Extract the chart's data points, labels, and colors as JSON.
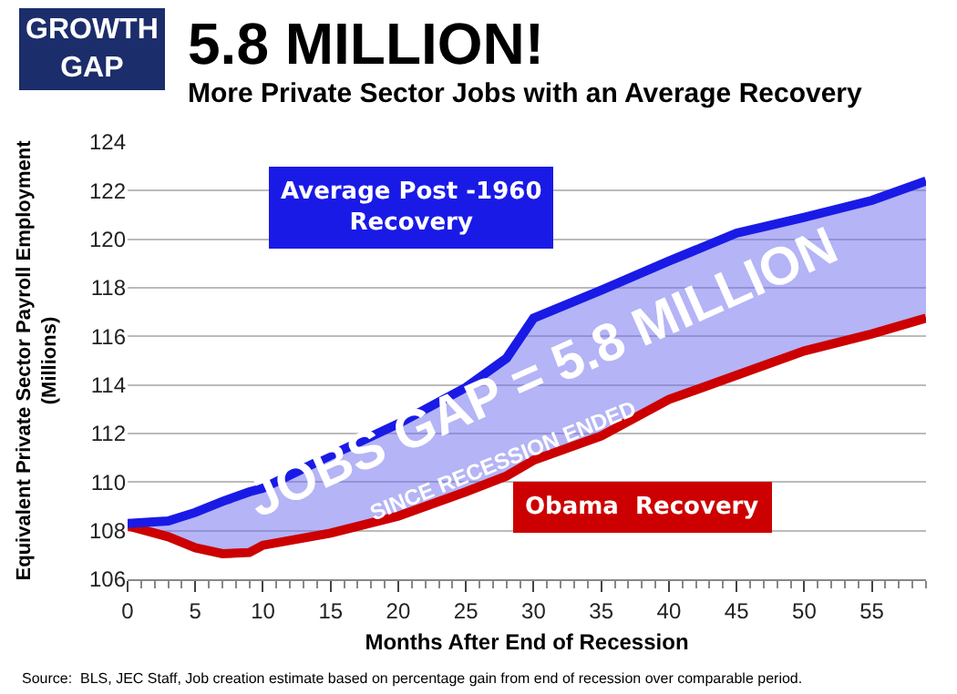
{
  "chart_data": {
    "type": "line",
    "title": "5.8 MILLION!",
    "subtitle": "More Private Sector Jobs with an Average Recovery",
    "xlabel": "Months After End of Recession",
    "ylabel": "Equivalent Private Sector Payroll Employment (Millions)",
    "x": [
      0,
      3,
      5,
      7,
      9,
      10,
      15,
      20,
      25,
      28,
      30,
      35,
      40,
      45,
      50,
      55,
      59
    ],
    "series": [
      {
        "name": "Obama  Recovery",
        "color": "#cc0000",
        "values": [
          108.2,
          107.75,
          107.3,
          107.05,
          107.1,
          107.4,
          107.9,
          108.6,
          109.6,
          110.25,
          110.9,
          111.9,
          113.4,
          114.4,
          115.4,
          116.1,
          116.75
        ]
      },
      {
        "name": "Average Post -1960 Recovery",
        "color": "#1a1ae6",
        "type": "area",
        "values": [
          108.3,
          108.4,
          108.75,
          109.2,
          109.6,
          109.75,
          111.1,
          112.4,
          113.9,
          115.1,
          116.75,
          117.9,
          119.1,
          120.25,
          120.9,
          121.6,
          122.4
        ]
      }
    ],
    "xlim": [
      0,
      59
    ],
    "xticks": [
      0,
      5,
      10,
      15,
      20,
      25,
      30,
      35,
      40,
      45,
      50,
      55
    ],
    "ylim": [
      106,
      124
    ],
    "yticks": [
      106,
      108,
      110,
      112,
      114,
      116,
      118,
      120,
      122,
      124
    ],
    "grid": "y",
    "legend": false,
    "marker": "none",
    "line_style": "solid",
    "annotations": [
      "GROWTH GAP",
      "JOBS GAP = 5.8 MILLION",
      "SINCE RECESSION ENDED",
      "Source:  BLS, JEC Staff, Job creation estimate based on percentage gain from end of recession over comparable period."
    ]
  }
}
